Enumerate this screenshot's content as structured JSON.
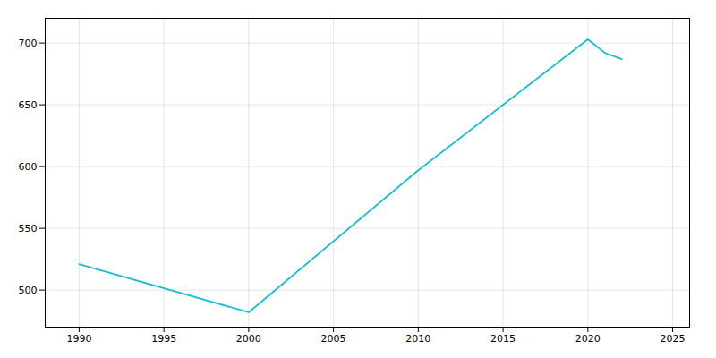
{
  "chart_data": {
    "type": "line",
    "x": [
      1990,
      2000,
      2010,
      2020,
      2021,
      2022
    ],
    "values": [
      521,
      482,
      597,
      703,
      692,
      687
    ],
    "color": "#17becf",
    "xlim": [
      1988,
      2026
    ],
    "ylim": [
      470,
      720
    ],
    "xticks": [
      1990,
      1995,
      2000,
      2005,
      2010,
      2015,
      2020,
      2025
    ],
    "yticks": [
      500,
      550,
      600,
      650,
      700
    ],
    "grid": true
  }
}
